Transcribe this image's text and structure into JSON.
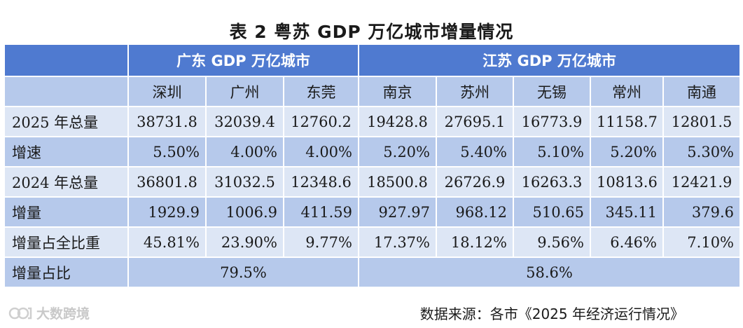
{
  "title": "表 2 粤苏 GDP 万亿城市增量情况",
  "regions": {
    "guangdong": "广东 GDP 万亿城市",
    "jiangsu": "江苏 GDP 万亿城市"
  },
  "cities": [
    "深圳",
    "广州",
    "东莞",
    "南京",
    "苏州",
    "无锡",
    "常州",
    "南通"
  ],
  "rows": [
    {
      "label": "2025 年总量",
      "values": [
        "38731.8",
        "32039.4",
        "12760.2",
        "19428.8",
        "27695.1",
        "16773.9",
        "11158.7",
        "12801.5"
      ]
    },
    {
      "label": "增速",
      "values": [
        "5.50%",
        "4.00%",
        "4.00%",
        "5.20%",
        "5.40%",
        "5.10%",
        "5.20%",
        "5.30%"
      ]
    },
    {
      "label": "2024 年总量",
      "values": [
        "36801.8",
        "31032.5",
        "12348.6",
        "18500.8",
        "26726.9",
        "16263.3",
        "10813.6",
        "12421.9"
      ]
    },
    {
      "label": "增量",
      "values": [
        "1929.9",
        "1006.9",
        "411.59",
        "927.97",
        "968.12",
        "510.65",
        "345.11",
        "379.6"
      ]
    },
    {
      "label": "增量占全比重",
      "values": [
        "45.81%",
        "23.90%",
        "9.77%",
        "17.37%",
        "18.12%",
        "9.56%",
        "6.46%",
        "7.10%"
      ]
    }
  ],
  "share_row": {
    "label": "增量占比",
    "guangdong": "79.5%",
    "jiangsu": "58.6%"
  },
  "watermark": "大数跨境",
  "source": "数据来源：各市《2025 年经济运行情况》"
}
